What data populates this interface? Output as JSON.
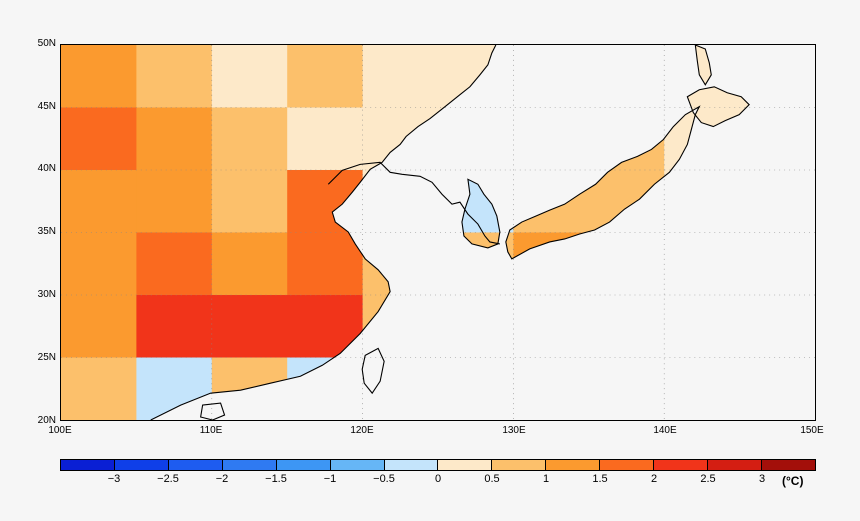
{
  "map": {
    "lat_labels": [
      "50N",
      "45N",
      "40N",
      "35N",
      "30N",
      "25N",
      "20N"
    ],
    "lon_labels": [
      "100E",
      "110E",
      "120E",
      "130E",
      "140E",
      "150E"
    ],
    "extent": {
      "lon_min": 100,
      "lon_max": 150,
      "lat_min": 20,
      "lat_max": 50
    },
    "ocean_color": "#f6f6f6",
    "coastline_color": "#000000"
  },
  "colorbar": {
    "colors": [
      "#0a1fd4",
      "#0f3fe8",
      "#1e5cf0",
      "#2f7af2",
      "#3d96f4",
      "#66b6f6",
      "#c4e4fb",
      "#fde9c9",
      "#fcc06b",
      "#fb9a2f",
      "#fa6a1f",
      "#f1341a",
      "#d41e12",
      "#a30f0a"
    ],
    "ticks": [
      "−3",
      "−2.5",
      "−2",
      "−1.5",
      "−1",
      "−0.5",
      "0",
      "0.5",
      "1",
      "1.5",
      "2",
      "2.5",
      "3"
    ],
    "unit": "(°C)"
  },
  "anomaly_field": {
    "grid_lon_min": 100,
    "grid_lat_max": 50,
    "cell_deg": 5,
    "rows": [
      [
        2,
        1,
        0,
        1,
        0,
        0,
        0,
        0,
        0,
        0
      ],
      [
        3,
        2,
        1,
        0,
        0,
        0,
        0,
        1,
        0,
        0
      ],
      [
        2,
        2,
        1,
        3,
        0,
        -1,
        1,
        1,
        0,
        1
      ],
      [
        2,
        3,
        2,
        3,
        1,
        1,
        2,
        0,
        2,
        2
      ],
      [
        2,
        4,
        4,
        4,
        1,
        -1,
        -1,
        1,
        2,
        -1
      ],
      [
        1,
        -1,
        1,
        -1,
        -1,
        -1,
        -1,
        -1,
        -1,
        -1
      ]
    ]
  }
}
